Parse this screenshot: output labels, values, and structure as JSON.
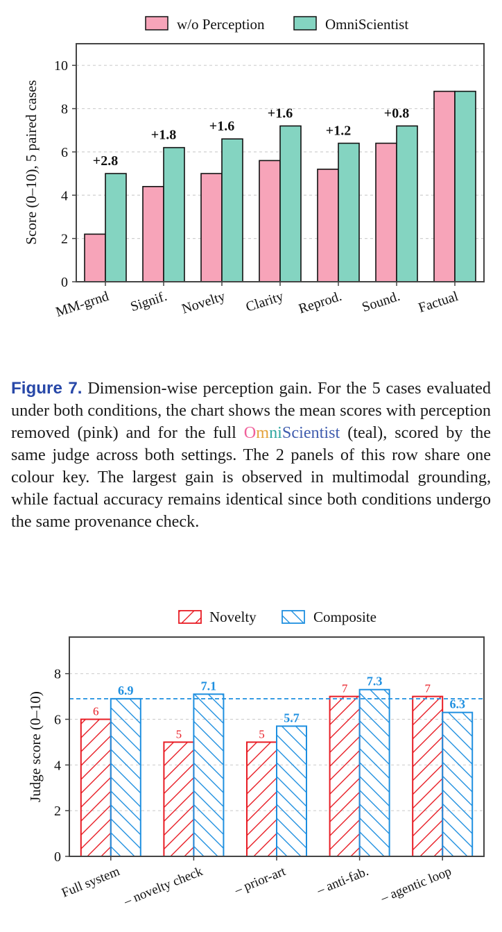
{
  "figure7": {
    "chart_data": {
      "type": "bar",
      "categories": [
        "MM-grnd",
        "Signif.",
        "Novelty",
        "Clarity",
        "Reprod.",
        "Sound.",
        "Factual"
      ],
      "series": [
        {
          "name": "w/o Perception",
          "values": [
            2.2,
            4.4,
            5.0,
            5.6,
            5.2,
            6.4,
            8.8
          ]
        },
        {
          "name": "OmniScientist",
          "values": [
            5.0,
            6.2,
            6.6,
            7.2,
            6.4,
            7.2,
            8.8
          ]
        }
      ],
      "annotations": [
        "+2.8",
        "+1.8",
        "+1.6",
        "+1.6",
        "+1.2",
        "+0.8",
        ""
      ],
      "ylabel": "Score (0–10), 5 paired cases",
      "xlabel": "",
      "title": "",
      "ylim": [
        0,
        11
      ],
      "yticks": [
        "0",
        "2",
        "4",
        "6",
        "8",
        "10"
      ],
      "grid": "horizontal-dashed",
      "legend": "top-center",
      "colors": [
        "#f7a4b9",
        "#84d4c1"
      ]
    },
    "caption": {
      "label": "Figure 7.",
      "text_before": "Dimension-wise perception gain. For the 5 cases evaluated under both conditions, the chart shows the mean scores with perception removed (pink) and for the full",
      "brand_o": "O",
      "brand_m": "m",
      "brand_n": "ni",
      "brand_s": "Scientist",
      "text_after": "(teal), scored by the same judge across both settings. The 2 panels of this row share one colour key. The largest gain is observed in multimodal grounding, while factual accuracy remains identical since both conditions undergo the same provenance check."
    }
  },
  "figure8": {
    "chart_data": {
      "type": "bar",
      "categories": [
        "Full system",
        "– novelty check",
        "– prior-art",
        "– anti-fab.",
        "– agentic loop"
      ],
      "series": [
        {
          "name": "Novelty",
          "values": [
            6,
            5,
            5,
            7,
            7
          ],
          "labels": [
            "6",
            "5",
            "5",
            "7",
            "7"
          ]
        },
        {
          "name": "Composite",
          "values": [
            6.9,
            7.1,
            5.7,
            7.3,
            6.3
          ],
          "labels": [
            "6.9",
            "7.1",
            "5.7",
            "7.3",
            "6.3"
          ]
        }
      ],
      "reference_line": {
        "value": 6.9
      },
      "ylabel": "Judge score (0–10)",
      "xlabel": "",
      "title": "",
      "ylim": [
        0,
        9.6
      ],
      "yticks": [
        "0",
        "2",
        "4",
        "6",
        "8"
      ],
      "grid": "horizontal-dashed",
      "legend": "top-center",
      "colors": [
        "#e81c24",
        "#1e8fe0"
      ],
      "hatch": [
        "forward-diagonal",
        "backward-diagonal"
      ]
    }
  }
}
